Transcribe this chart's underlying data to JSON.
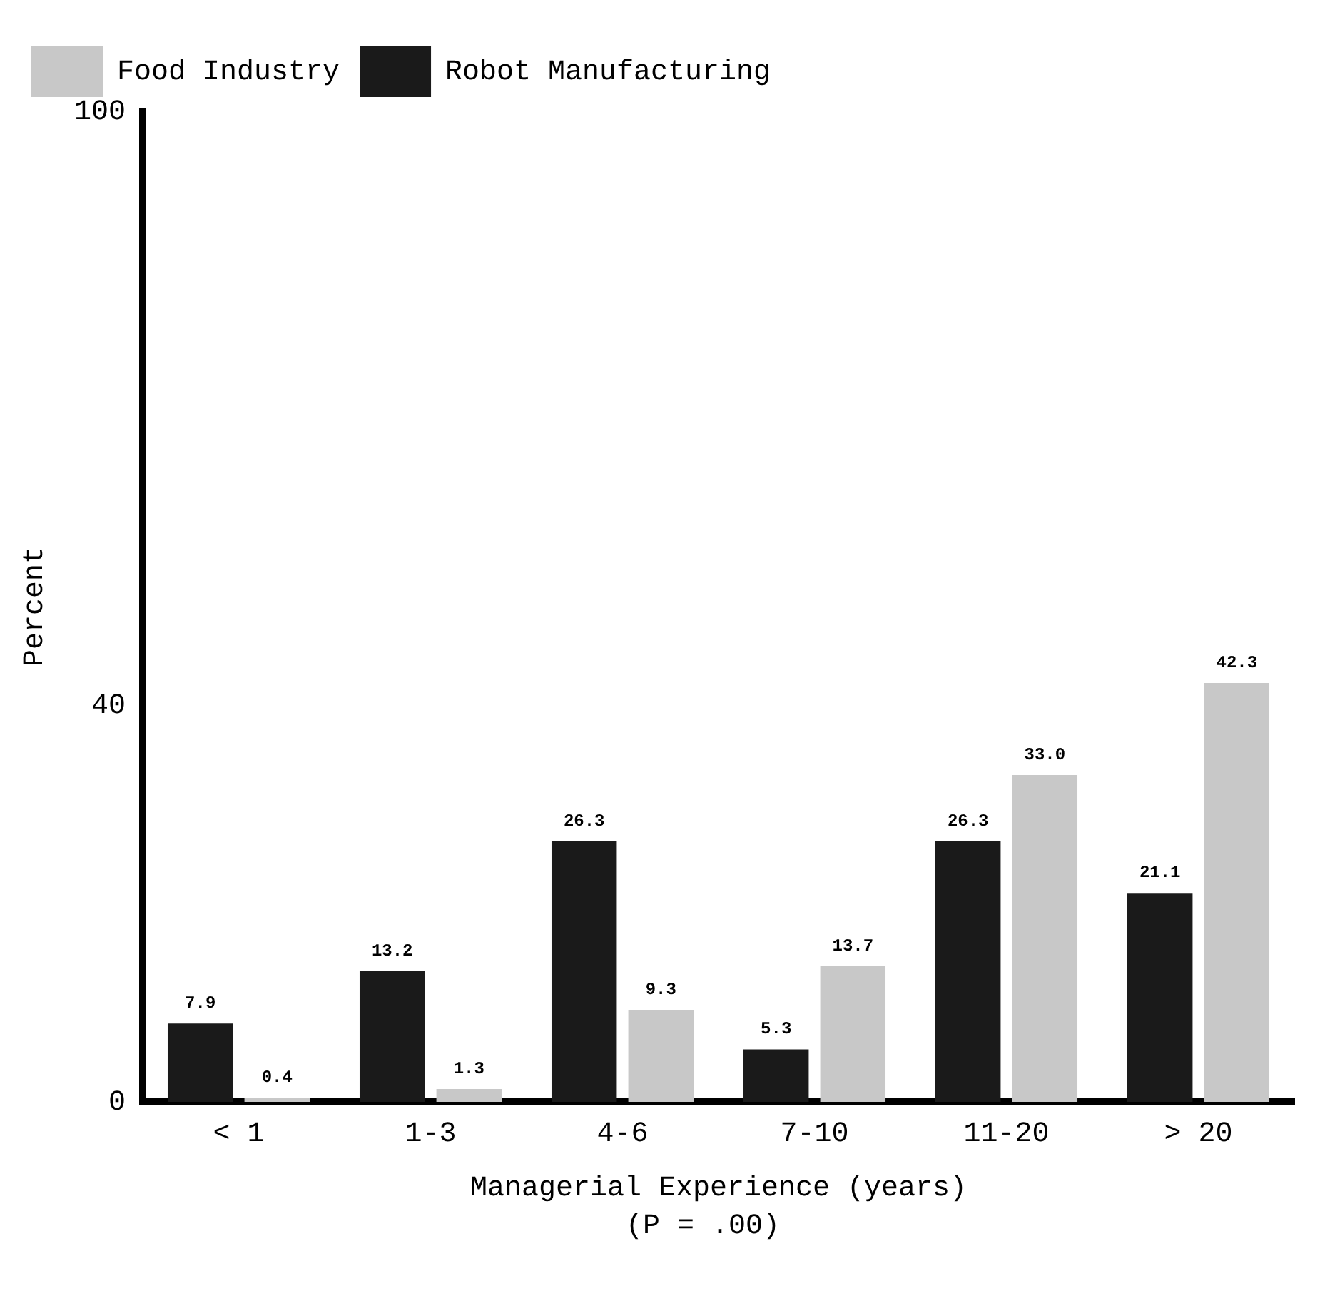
{
  "chart_data": {
    "type": "bar",
    "xlabel": "Managerial Experience (years)",
    "ylabel": "Percent",
    "annotations": [
      "(P = .00)"
    ],
    "categories": [
      "< 1",
      "1-3",
      "4-6",
      "7-10",
      "11-20",
      "> 20"
    ],
    "series": [
      {
        "name": "Robot Manufacturing",
        "color": "#1a1a1a",
        "values": [
          7.9,
          13.2,
          26.3,
          5.3,
          26.3,
          21.1
        ],
        "value_labels": [
          "7.9",
          "13.2",
          "26.3",
          "5.3",
          "26.3",
          "21.1"
        ]
      },
      {
        "name": "Food Industry",
        "color": "#c8c8c8",
        "values": [
          0.4,
          1.3,
          9.3,
          13.7,
          33.0,
          42.3
        ],
        "value_labels": [
          "0.4",
          "1.3",
          "9.3",
          "13.7",
          "33.0",
          "42.3"
        ]
      }
    ],
    "ylim": [
      0,
      100
    ],
    "yticks": [
      0,
      40,
      100
    ],
    "grid": false,
    "legend": "top left"
  }
}
